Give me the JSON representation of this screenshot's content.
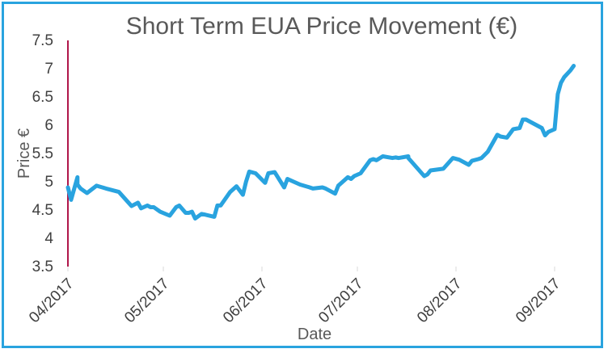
{
  "chart_data": {
    "type": "line",
    "title": "Short Term EUA Price Movement (€)",
    "xlabel": "Date",
    "ylabel": "Price €",
    "ylim": [
      3.5,
      7.5
    ],
    "y_ticks": [
      "3.5",
      "4",
      "4.5",
      "5",
      "5.5",
      "6",
      "6.5",
      "7",
      "7.5"
    ],
    "x_tick_labels": [
      "04/2017",
      "05/2017",
      "06/2017",
      "07/2017",
      "08/2017",
      "09/2017"
    ],
    "x_tick_dates": [
      "2017-04-01",
      "2017-05-01",
      "2017-06-01",
      "2017-07-01",
      "2017-08-01",
      "2017-09-01"
    ],
    "xlim": [
      "2017-04-01",
      "2017-09-08"
    ],
    "grid": false,
    "legend": "none",
    "colors": {
      "line": "#29a3df",
      "y_axis": "#b0164a",
      "frame": "#29a3df"
    },
    "series": [
      {
        "x": [
          "2017-04-01",
          "2017-04-02",
          "2017-04-04",
          "2017-04-04",
          "2017-04-05",
          "2017-04-07",
          "2017-04-10",
          "2017-04-13",
          "2017-04-17",
          "2017-04-21",
          "2017-04-23",
          "2017-04-24",
          "2017-04-26",
          "2017-04-27",
          "2017-04-28",
          "2017-04-30",
          "2017-05-03",
          "2017-05-05",
          "2017-05-06",
          "2017-05-08",
          "2017-05-09",
          "2017-05-10",
          "2017-05-11",
          "2017-05-13",
          "2017-05-14",
          "2017-05-17",
          "2017-05-18",
          "2017-05-19",
          "2017-05-22",
          "2017-05-24",
          "2017-05-26",
          "2017-05-27",
          "2017-05-28",
          "2017-05-30",
          "2017-06-02",
          "2017-06-03",
          "2017-06-05",
          "2017-06-08",
          "2017-06-09",
          "2017-06-11",
          "2017-06-13",
          "2017-06-16",
          "2017-06-17",
          "2017-06-20",
          "2017-06-21",
          "2017-06-24",
          "2017-06-25",
          "2017-06-28",
          "2017-06-29",
          "2017-06-30",
          "2017-07-02",
          "2017-07-05",
          "2017-07-06",
          "2017-07-07",
          "2017-07-09",
          "2017-07-12",
          "2017-07-13",
          "2017-07-14",
          "2017-07-17",
          "2017-07-17",
          "2017-07-22",
          "2017-07-23",
          "2017-07-24",
          "2017-07-28",
          "2017-07-31",
          "2017-08-02",
          "2017-08-05",
          "2017-08-06",
          "2017-08-08",
          "2017-08-09",
          "2017-08-11",
          "2017-08-14",
          "2017-08-15",
          "2017-08-17",
          "2017-08-19",
          "2017-08-21",
          "2017-08-22",
          "2017-08-23",
          "2017-08-28",
          "2017-08-29",
          "2017-08-30",
          "2017-09-01",
          "2017-09-02",
          "2017-09-03",
          "2017-09-04",
          "2017-09-06",
          "2017-09-07"
        ],
        "y": [
          4.9,
          4.68,
          5.08,
          4.95,
          4.88,
          4.8,
          4.93,
          4.88,
          4.82,
          4.57,
          4.63,
          4.53,
          4.58,
          4.55,
          4.55,
          4.47,
          4.4,
          4.55,
          4.58,
          4.45,
          4.45,
          4.47,
          4.35,
          4.43,
          4.42,
          4.38,
          4.58,
          4.58,
          4.82,
          4.92,
          4.77,
          5.0,
          5.18,
          5.15,
          4.98,
          5.15,
          5.17,
          4.9,
          5.05,
          5.0,
          4.95,
          4.9,
          4.88,
          4.9,
          4.88,
          4.79,
          4.93,
          5.08,
          5.05,
          5.1,
          5.15,
          5.38,
          5.4,
          5.38,
          5.45,
          5.42,
          5.43,
          5.42,
          5.45,
          5.42,
          5.1,
          5.13,
          5.2,
          5.23,
          5.42,
          5.39,
          5.3,
          5.37,
          5.4,
          5.42,
          5.53,
          5.83,
          5.8,
          5.78,
          5.93,
          5.95,
          6.1,
          6.1,
          5.95,
          5.82,
          5.88,
          5.93,
          6.55,
          6.75,
          6.85,
          6.97,
          7.05
        ]
      }
    ]
  }
}
